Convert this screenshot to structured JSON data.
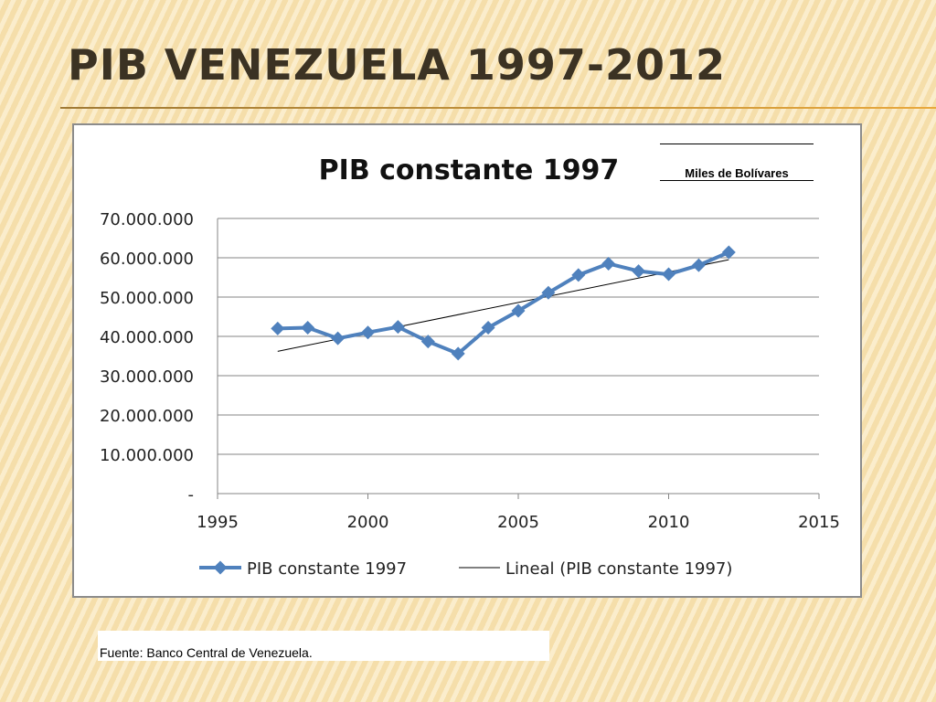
{
  "slide": {
    "title": "PIB VENEZUELA 1997-2012",
    "source_note": "Fuente: Banco Central de Venezuela.",
    "unit_note": "Miles de Bolívares"
  },
  "colors": {
    "series": "#4f81bd",
    "trend": "#000000",
    "grid": "#868686",
    "title_text": "#3b3223"
  },
  "chart_data": {
    "type": "line",
    "title": "PIB constante 1997",
    "xlabel": "",
    "ylabel": "",
    "xlim": [
      1995,
      2015
    ],
    "ylim": [
      0,
      70000000
    ],
    "x_ticks": [
      1995,
      2000,
      2005,
      2010,
      2015
    ],
    "x_tick_labels": [
      "1995",
      "2000",
      "2005",
      "2010",
      "2015"
    ],
    "y_ticks": [
      0,
      10000000,
      20000000,
      30000000,
      40000000,
      50000000,
      60000000,
      70000000
    ],
    "y_tick_labels": [
      "-",
      "10.000.000",
      "20.000.000",
      "30.000.000",
      "40.000.000",
      "50.000.000",
      "60.000.000",
      "70.000.000"
    ],
    "grid": true,
    "legend_position": "bottom",
    "series": [
      {
        "name": "PIB constante 1997",
        "marker": "diamond",
        "x": [
          1997,
          1998,
          1999,
          2000,
          2001,
          2002,
          2003,
          2004,
          2005,
          2006,
          2007,
          2008,
          2009,
          2010,
          2011,
          2012
        ],
        "y": [
          42000000,
          42200000,
          39500000,
          41000000,
          42400000,
          38700000,
          35600000,
          42200000,
          46500000,
          51100000,
          55600000,
          58500000,
          56600000,
          55800000,
          58100000,
          61400000
        ]
      }
    ],
    "trendline": {
      "name": "Lineal (PIB constante 1997)",
      "type": "linear",
      "x": [
        1997,
        2012
      ],
      "y": [
        36200000,
        59500000
      ]
    }
  }
}
